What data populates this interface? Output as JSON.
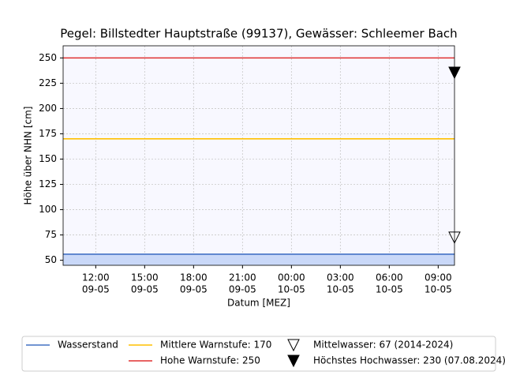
{
  "chart_data": {
    "type": "line",
    "title": "Pegel:  Billstedter Hauptstraße (99137), Gewässer:  Schleemer Bach",
    "xlabel": "Datum [MEZ]",
    "ylabel": "Höhe über NHN [cm]",
    "xlim": [
      "09-05 10:00",
      "10-05 10:00"
    ],
    "xticks": [
      {
        "value": "09-05 12:00",
        "label": [
          "12:00",
          "09-05"
        ]
      },
      {
        "value": "09-05 15:00",
        "label": [
          "15:00",
          "09-05"
        ]
      },
      {
        "value": "09-05 18:00",
        "label": [
          "18:00",
          "09-05"
        ]
      },
      {
        "value": "09-05 21:00",
        "label": [
          "21:00",
          "09-05"
        ]
      },
      {
        "value": "10-05 00:00",
        "label": [
          "00:00",
          "10-05"
        ]
      },
      {
        "value": "10-05 03:00",
        "label": [
          "03:00",
          "10-05"
        ]
      },
      {
        "value": "10-05 06:00",
        "label": [
          "06:00",
          "10-05"
        ]
      },
      {
        "value": "10-05 09:00",
        "label": [
          "09:00",
          "10-05"
        ]
      }
    ],
    "ylim": [
      45,
      262
    ],
    "yticks": [
      50,
      75,
      100,
      125,
      150,
      175,
      200,
      225,
      250
    ],
    "grid": true,
    "series": [
      {
        "name": "Wasserstand",
        "color": "#4472c4",
        "area_color": "#c9d8f8",
        "x": [
          "09-05 10:00",
          "10-05 10:00"
        ],
        "values": [
          56,
          56
        ]
      },
      {
        "name": "Mittlere Warnstufe: 170",
        "color": "#ffc000",
        "x": [
          "09-05 10:00",
          "10-05 10:00"
        ],
        "values": [
          170,
          170
        ]
      },
      {
        "name": "Hohe Warnstufe: 250",
        "color": "#e03030",
        "x": [
          "09-05 10:00",
          "10-05 10:00"
        ],
        "values": [
          250,
          250
        ]
      },
      {
        "name": "Mittelwasser: 67 (2014-2024)",
        "color": "#000000",
        "marker": "open",
        "x": [
          "10-05 10:00"
        ],
        "values": [
          67
        ]
      },
      {
        "name": "Höchstes Hochwasser: 230 (07.08.2024)",
        "color": "#000000",
        "marker": "filled",
        "x": [
          "10-05 10:00"
        ],
        "values": [
          230
        ]
      }
    ]
  }
}
